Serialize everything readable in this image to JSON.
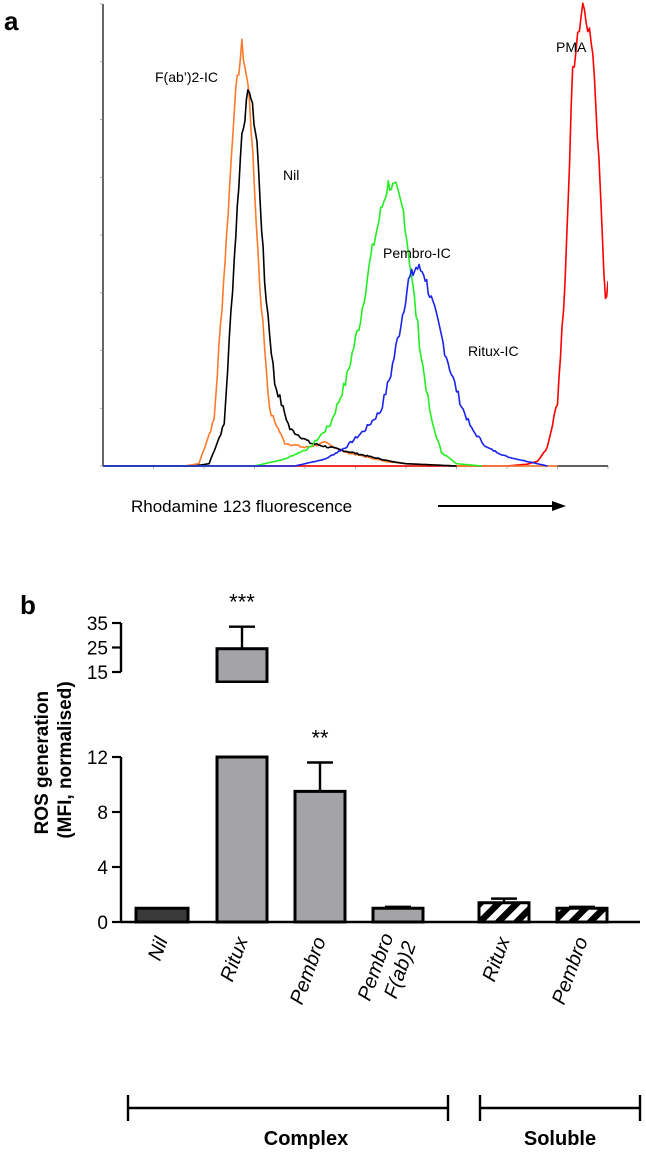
{
  "panel_a": {
    "label": "a",
    "chart_data": {
      "type": "line",
      "title": "",
      "xlabel": "Rhodamine 123 fluorescence",
      "ylabel": "",
      "xlim": [
        0,
        100
      ],
      "ylim": [
        0,
        100
      ],
      "xaxis_arrow": true,
      "series": [
        {
          "name": "PMA",
          "label": "PMA",
          "color": "#ff0000",
          "x": [
            0,
            30,
            60,
            80,
            84,
            86,
            88,
            90,
            91.5,
            93,
            95,
            97,
            98.5,
            99.5,
            100
          ],
          "y": [
            0,
            0,
            0,
            0,
            0.4,
            1,
            4,
            14,
            40,
            85,
            100,
            90,
            60,
            35,
            40
          ]
        },
        {
          "name": "F(ab')2-IC",
          "label": "F(ab’)2-IC",
          "color": "#ff7a2a",
          "x": [
            0,
            16,
            19,
            22,
            24.5,
            26,
            27.5,
            29,
            31,
            33,
            36,
            40,
            44,
            48,
            52,
            56,
            60,
            70,
            80,
            90
          ],
          "y": [
            0,
            0,
            0.5,
            10,
            50,
            78,
            91,
            80,
            40,
            12,
            5,
            4,
            5,
            3,
            2,
            1,
            0.5,
            0,
            0,
            0
          ]
        },
        {
          "name": "Nil",
          "label": "Nil",
          "color": "#000000",
          "x": [
            0,
            18,
            21,
            24,
            26,
            27.5,
            29,
            30.5,
            32,
            34,
            37,
            41,
            45,
            49,
            53,
            57,
            60,
            70
          ],
          "y": [
            0,
            0,
            0.5,
            9,
            45,
            72,
            82,
            70,
            40,
            18,
            8,
            5,
            4,
            3,
            2,
            1,
            0.5,
            0
          ]
        },
        {
          "name": "Pembro-IC",
          "label": "Pembro-IC",
          "color": "#22ee22",
          "x": [
            0,
            30,
            36,
            41,
            45,
            48,
            51,
            53,
            55,
            56.5,
            58,
            59.5,
            61,
            63,
            65,
            67,
            70,
            75
          ],
          "y": [
            0,
            0,
            1.5,
            4,
            9,
            18,
            32,
            45,
            55,
            61,
            60,
            55,
            42,
            24,
            10,
            3,
            0.5,
            0
          ]
        },
        {
          "name": "Ritux-IC",
          "label": "Ritux-IC",
          "color": "#1a22ee",
          "x": [
            0,
            38,
            44,
            48,
            52,
            55,
            57,
            59,
            60.5,
            62,
            63.5,
            65,
            67,
            69,
            71,
            73,
            76,
            80,
            84,
            88
          ],
          "y": [
            0,
            0,
            1.5,
            4,
            8,
            12,
            20,
            31,
            40,
            43,
            42,
            36,
            28,
            20,
            13,
            8,
            4,
            2,
            1,
            0
          ]
        }
      ]
    }
  },
  "panel_b": {
    "label": "b",
    "chart_data": {
      "type": "bar",
      "title": "",
      "ylabel": "ROS generation\n(MFI, normalised)",
      "ylabel_lines": [
        "ROS generation",
        "(MFI, normalised)"
      ],
      "ylim": [
        0,
        35
      ],
      "y_break": [
        12,
        15
      ],
      "yticks_lower": [
        0,
        4,
        8,
        12
      ],
      "yticks_upper": [
        15,
        25,
        35
      ],
      "categories": [
        "Nil",
        "Ritux",
        "Pembro",
        "Pembro F(ab)2",
        "Ritux",
        "Pembro"
      ],
      "category_lines": [
        [
          "Nil"
        ],
        [
          "Ritux"
        ],
        [
          "Pembro"
        ],
        [
          "Pembro",
          "F(ab)2"
        ],
        [
          "Ritux"
        ],
        [
          "Pembro"
        ]
      ],
      "values": [
        1.0,
        24.5,
        9.5,
        1.0,
        1.4,
        1.0
      ],
      "errors": [
        0.0,
        9.0,
        2.1,
        0.1,
        0.3,
        0.1
      ],
      "significance": [
        "",
        "***",
        "**",
        "",
        "",
        ""
      ],
      "styles": [
        "dark",
        "gray",
        "gray",
        "gray",
        "hatched",
        "hatched"
      ],
      "colors": {
        "dark": "#3a3a3a",
        "gray": "#a4a4a8",
        "hatched": "#ffffff",
        "axis": "#000000"
      },
      "groups": [
        {
          "label": "Complex",
          "members": [
            0,
            1,
            2,
            3
          ]
        },
        {
          "label": "Soluble",
          "members": [
            4,
            5
          ]
        }
      ]
    }
  }
}
